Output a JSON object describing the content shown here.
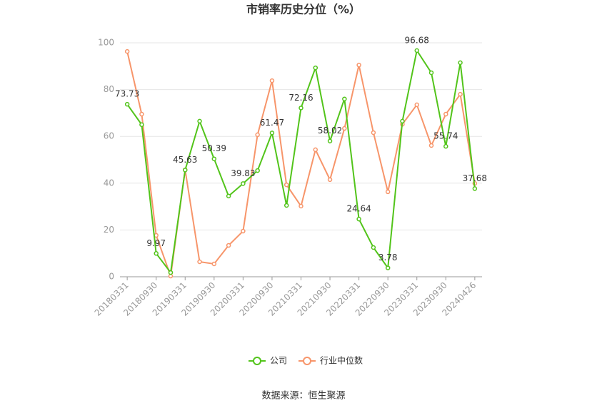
{
  "chart_data": {
    "type": "line",
    "title": "市销率历史分位（%）",
    "categories": [
      "20180331",
      null,
      "20180930",
      null,
      "20190331",
      null,
      "20190930",
      null,
      "20200331",
      null,
      "20200930",
      null,
      "20210331",
      null,
      "20210930",
      null,
      "20220331",
      null,
      "20220930",
      null,
      "20230331",
      null,
      "20230930",
      null,
      "20240426"
    ],
    "series": [
      {
        "name": "公司",
        "color": "#52c41a",
        "values": [
          73.73,
          65,
          9.97,
          1.8,
          45.63,
          66.5,
          50.39,
          34.5,
          39.83,
          45.4,
          61.47,
          30.5,
          72.16,
          89.3,
          58.02,
          76,
          24.64,
          12.5,
          3.78,
          66.5,
          96.68,
          87.2,
          55.74,
          91.5,
          37.68
        ],
        "value_labels": [
          "73.73",
          null,
          "9.97",
          null,
          "45.63",
          null,
          "50.39",
          null,
          "39.83",
          null,
          "61.47",
          null,
          "72.16",
          null,
          "58.02",
          null,
          "24.64",
          null,
          "3.78",
          null,
          "96.68",
          null,
          "55.74",
          null,
          "37.68"
        ]
      },
      {
        "name": "行业中位数",
        "color": "#f7956a",
        "values": [
          96.3,
          69.5,
          17.7,
          0.3,
          45.7,
          6.4,
          5.5,
          13.4,
          19.5,
          60.7,
          83.8,
          39.3,
          30.2,
          54.3,
          41.5,
          63.4,
          90.5,
          61.6,
          36.3,
          65.2,
          73.5,
          56.1,
          69.5,
          78,
          39.9
        ]
      }
    ],
    "ylim": [
      0,
      100
    ],
    "yticks": [
      0,
      20,
      40,
      60,
      80,
      100
    ],
    "grid": true,
    "source": "数据来源：恒生聚源"
  }
}
